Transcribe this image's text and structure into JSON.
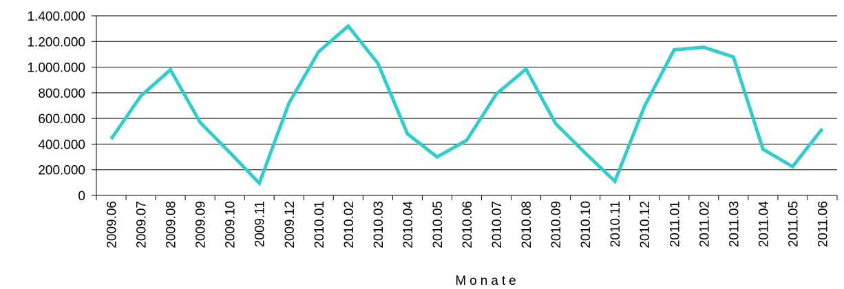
{
  "chart_data": {
    "type": "line",
    "title": "",
    "xlabel": "Monate",
    "ylabel": "",
    "ylim": [
      0,
      1400000
    ],
    "yticks": [
      0,
      200000,
      400000,
      600000,
      800000,
      1000000,
      1200000,
      1400000
    ],
    "ytick_labels": [
      "0",
      "200.000",
      "400.000",
      "600.000",
      "800.000",
      "1.000.000",
      "1.200.000",
      "1.400.000"
    ],
    "grid": true,
    "legend": "none",
    "categories": [
      "2009.06",
      "2009.07",
      "2009.08",
      "2009.09",
      "2009.10",
      "2009.11",
      "2009.12",
      "2010.01",
      "2010.02",
      "2010.03",
      "2010.04",
      "2010.05",
      "2010.06",
      "2010.07",
      "2010.08",
      "2010.09",
      "2010.10",
      "2010.11",
      "2010.12",
      "2011.01",
      "2011.02",
      "2011.03",
      "2011.04",
      "2011.05",
      "2011.06"
    ],
    "series": [
      {
        "color": "#33CCCC",
        "values": [
          440000,
          775000,
          980000,
          570000,
          335000,
          95000,
          720000,
          1120000,
          1320000,
          1030000,
          480000,
          300000,
          430000,
          790000,
          985000,
          560000,
          330000,
          110000,
          695000,
          1135000,
          1155000,
          1080000,
          360000,
          225000,
          520000
        ]
      }
    ]
  }
}
